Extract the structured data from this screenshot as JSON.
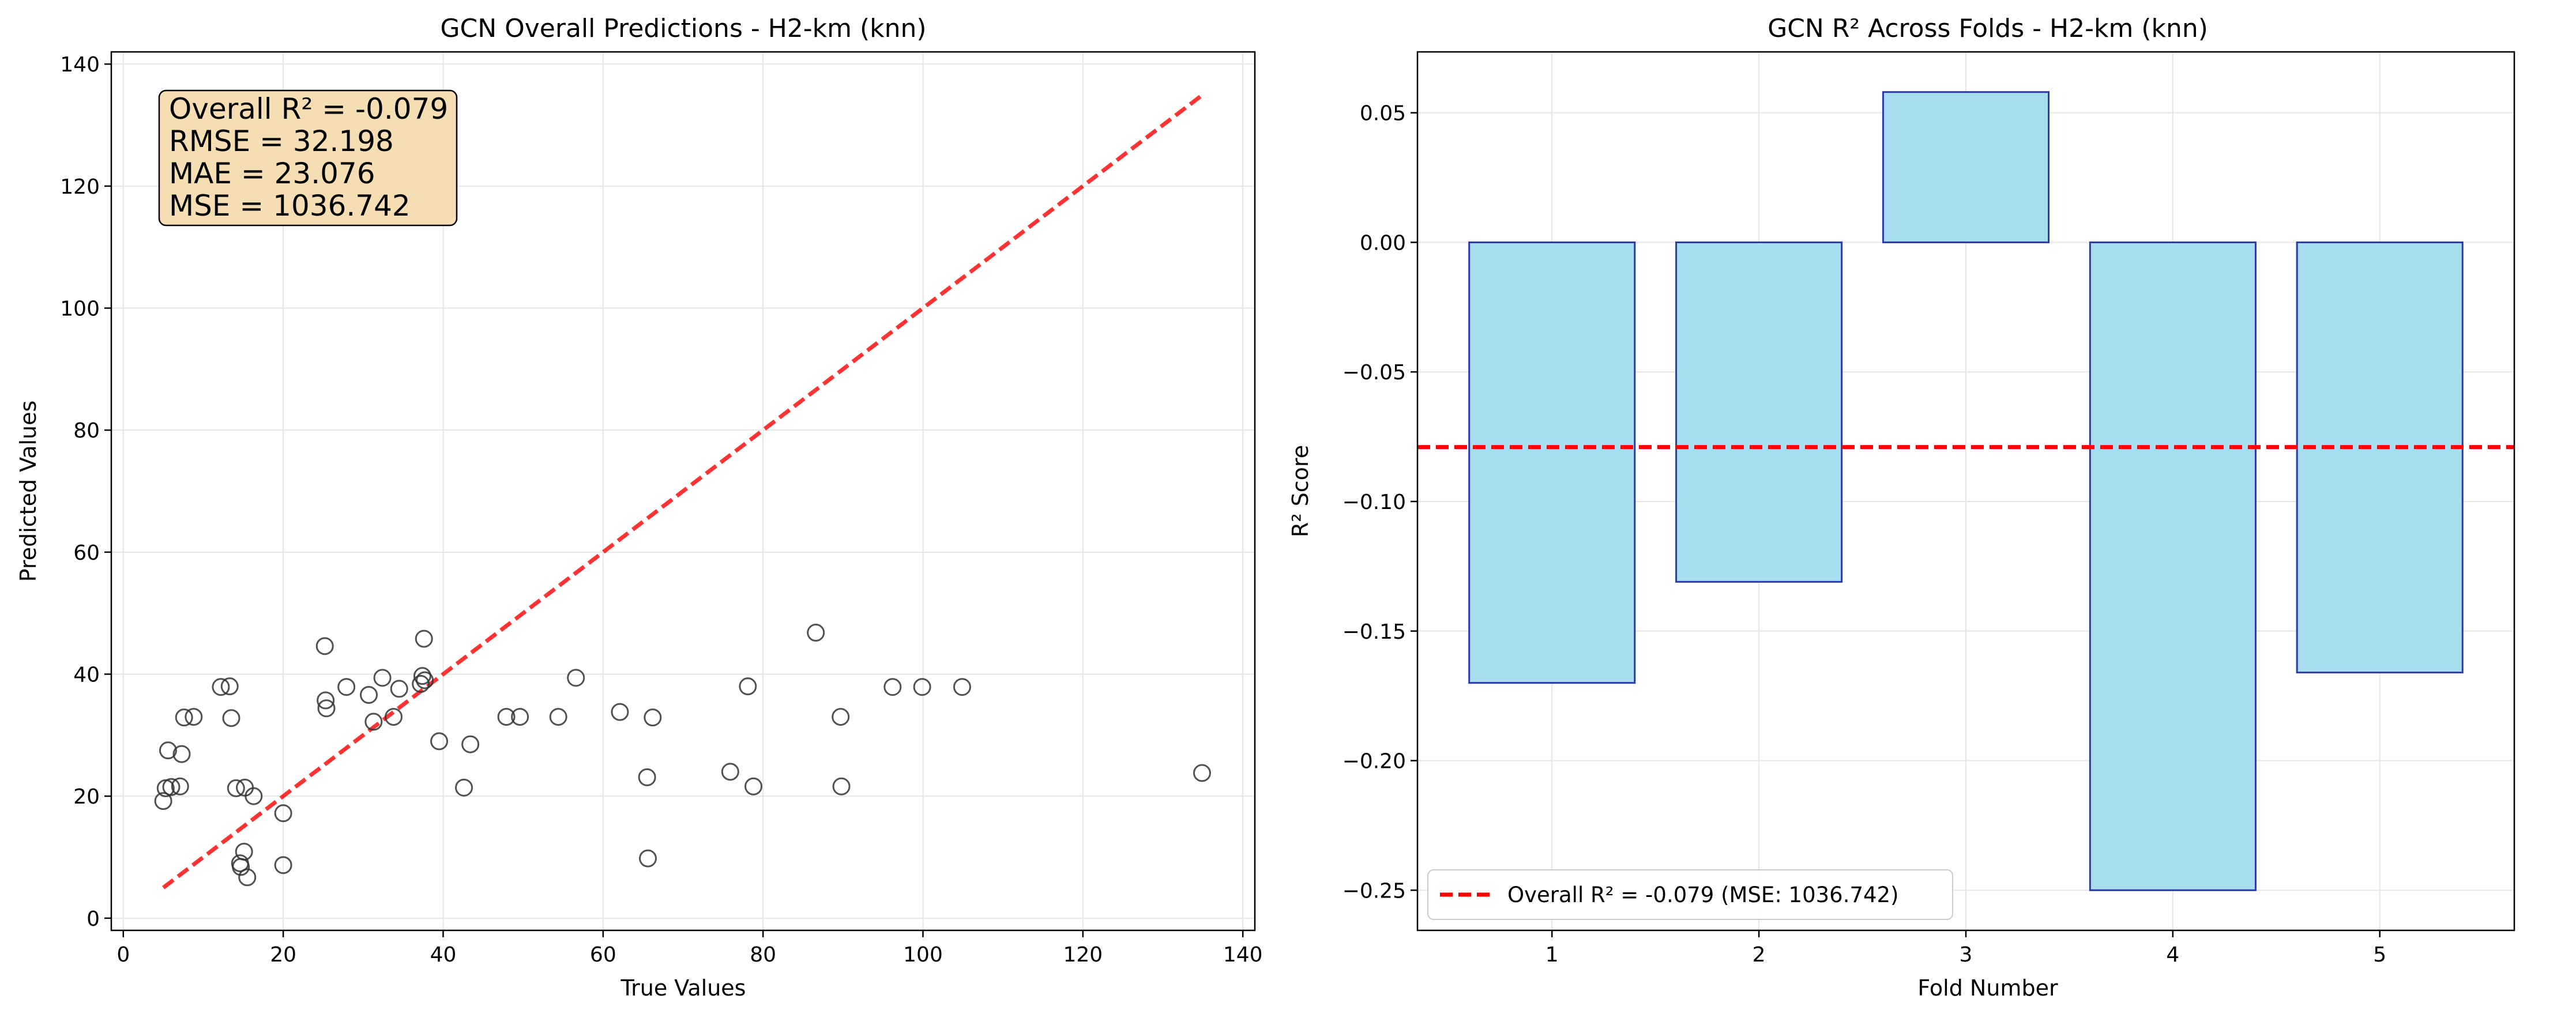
{
  "chart_data": [
    {
      "type": "scatter",
      "title": "GCN Overall Predictions - H2-km (knn)",
      "xlabel": "True Values",
      "ylabel": "Predicted Values",
      "xlim": [
        -1.5,
        141.5
      ],
      "ylim": [
        -2,
        142
      ],
      "xticks": [
        0,
        20,
        40,
        60,
        80,
        100,
        120,
        140
      ],
      "yticks": [
        0,
        20,
        40,
        60,
        80,
        100,
        120,
        140
      ],
      "grid": true,
      "points": [
        [
          5.0,
          19.2
        ],
        [
          5.3,
          21.3
        ],
        [
          5.6,
          27.5
        ],
        [
          6.0,
          21.5
        ],
        [
          7.1,
          21.6
        ],
        [
          7.3,
          26.9
        ],
        [
          7.6,
          32.9
        ],
        [
          8.8,
          33.0
        ],
        [
          12.2,
          37.9
        ],
        [
          13.3,
          38.0
        ],
        [
          13.5,
          32.8
        ],
        [
          14.1,
          21.3
        ],
        [
          14.6,
          9.0
        ],
        [
          14.7,
          8.4
        ],
        [
          15.1,
          10.9
        ],
        [
          15.2,
          21.4
        ],
        [
          15.5,
          6.7
        ],
        [
          16.3,
          20.0
        ],
        [
          20.0,
          17.2
        ],
        [
          20.0,
          8.7
        ],
        [
          25.2,
          44.6
        ],
        [
          25.3,
          35.7
        ],
        [
          25.4,
          34.4
        ],
        [
          27.9,
          37.9
        ],
        [
          30.7,
          36.6
        ],
        [
          31.3,
          32.2
        ],
        [
          32.4,
          39.4
        ],
        [
          33.8,
          33.0
        ],
        [
          34.5,
          37.6
        ],
        [
          37.2,
          38.4
        ],
        [
          37.4,
          39.7
        ],
        [
          37.6,
          45.8
        ],
        [
          37.7,
          39.0
        ],
        [
          39.5,
          29.0
        ],
        [
          42.6,
          21.4
        ],
        [
          43.4,
          28.5
        ],
        [
          47.9,
          33.0
        ],
        [
          49.6,
          33.0
        ],
        [
          54.4,
          33.0
        ],
        [
          56.6,
          39.4
        ],
        [
          62.1,
          33.8
        ],
        [
          65.5,
          23.1
        ],
        [
          65.6,
          9.8
        ],
        [
          66.2,
          32.9
        ],
        [
          75.9,
          24.0
        ],
        [
          78.1,
          38.0
        ],
        [
          78.8,
          21.6
        ],
        [
          86.6,
          46.8
        ],
        [
          89.7,
          33.0
        ],
        [
          89.8,
          21.6
        ],
        [
          96.2,
          37.9
        ],
        [
          99.9,
          37.9
        ],
        [
          104.9,
          37.9
        ],
        [
          134.9,
          23.8
        ]
      ],
      "reference_line": {
        "from": [
          5,
          5
        ],
        "to": [
          135,
          135
        ],
        "color": "#ff0000",
        "style": "dashed"
      },
      "stats_box": [
        "Overall R² = -0.079",
        "RMSE = 32.198",
        "MAE = 23.076",
        "MSE = 1036.742"
      ],
      "stats_box_color": "#f5deb3",
      "marker_edge_color": "#333333"
    },
    {
      "type": "bar",
      "title": "GCN R² Across Folds - H2-km (knn)",
      "xlabel": "Fold Number",
      "ylabel": "R² Score",
      "categories": [
        "1",
        "2",
        "3",
        "4",
        "5"
      ],
      "values": [
        -0.17,
        -0.131,
        0.058,
        -0.25,
        -0.166
      ],
      "ylim": [
        -0.2655,
        0.0735
      ],
      "yticks": [
        0.05,
        0.0,
        -0.05,
        -0.1,
        -0.15,
        -0.2,
        -0.25
      ],
      "ytick_labels": [
        "0.05",
        "0.00",
        "−0.05",
        "−0.10",
        "−0.15",
        "−0.20",
        "−0.25"
      ],
      "grid": true,
      "bar_color": "#a8dcf0",
      "bar_edge_color": "#2b3aa8",
      "mean_line": {
        "value": -0.079,
        "color": "#ff0000",
        "style": "dashed",
        "label": "Overall R² = -0.079 (MSE: 1036.742)"
      },
      "legend_position": "lower-left"
    }
  ]
}
